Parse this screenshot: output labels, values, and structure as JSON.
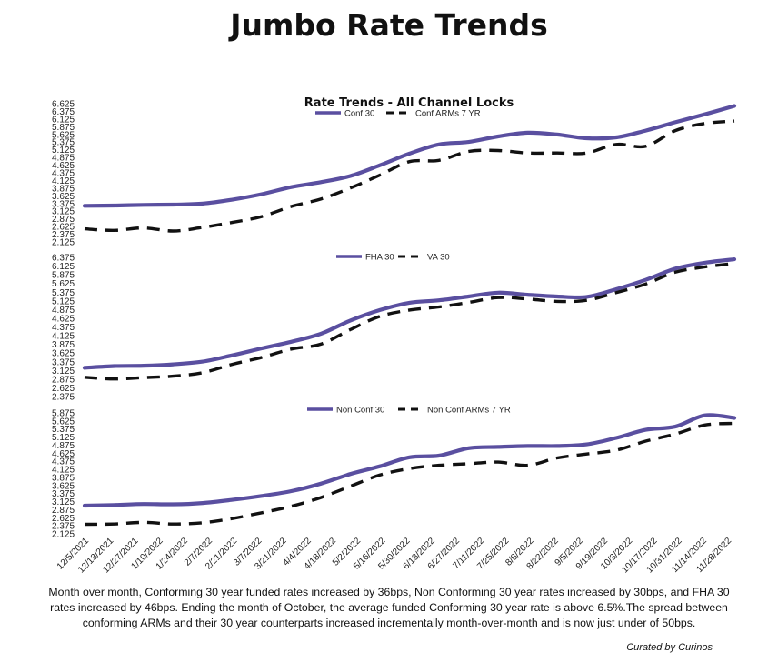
{
  "page": {
    "title": "Jumbo Rate Trends",
    "summary": "Month over month, Conforming 30 year funded rates increased by 36bps, Non Conforming 30 year rates increased by 30bps, and FHA 30 rates increased by 46bps. Ending the month of October, the average funded Conforming 30 year rate is above 6.5%.The spread between conforming ARMs and their 30 year counterparts increased incrementally month-over-month and is now just under of 50bps.",
    "credit": "Curated by Curinos"
  },
  "colors": {
    "primary_series": "#5a4fa0",
    "secondary_series": "#111111"
  },
  "chart_data": [
    {
      "type": "line",
      "title": "Rate Trends - All Channel Locks",
      "x_tick_labels": [
        "12/5/2021",
        "12/13/2021",
        "12/27/2021",
        "1/10/2022",
        "1/24/2022",
        "2/7/2022",
        "2/21/2022",
        "3/7/2022",
        "3/21/2022",
        "4/4/2022",
        "4/18/2022",
        "5/2/2022",
        "5/16/2022",
        "5/30/2022",
        "6/13/2022",
        "6/27/2022",
        "7/11/2022",
        "7/25/2022",
        "8/8/2022",
        "8/22/2022",
        "9/5/2022",
        "9/19/2022",
        "10/3/2022",
        "10/17/2022",
        "10/31/2022",
        "11/14/2022",
        "11/28/2022"
      ],
      "ylim": [
        2.125,
        6.625
      ],
      "y_ticks": [
        "6.625",
        "6.375",
        "6.125",
        "5.875",
        "5.625",
        "5.375",
        "5.125",
        "4.875",
        "4.625",
        "4.375",
        "4.125",
        "3.875",
        "3.625",
        "3.375",
        "3.125",
        "2.875",
        "2.625",
        "2.375",
        "2.125"
      ],
      "series": [
        {
          "name": "Conf 30",
          "style": "solid",
          "values": [
            3.3,
            3.31,
            3.33,
            3.34,
            3.37,
            3.5,
            3.68,
            3.91,
            4.07,
            4.27,
            4.62,
            5.0,
            5.3,
            5.38,
            5.56,
            5.68,
            5.62,
            5.5,
            5.53,
            5.75,
            6.02,
            6.28,
            6.55
          ]
        },
        {
          "name": "Conf ARMs 7 YR",
          "style": "dashed",
          "values": [
            2.55,
            2.5,
            2.58,
            2.48,
            2.6,
            2.76,
            2.95,
            3.28,
            3.52,
            3.88,
            4.3,
            4.74,
            4.78,
            5.07,
            5.1,
            5.02,
            5.02,
            5.02,
            5.3,
            5.24,
            5.75,
            5.98,
            6.06
          ]
        }
      ]
    },
    {
      "type": "line",
      "title": "",
      "ylim": [
        2.375,
        6.375
      ],
      "y_ticks": [
        "6.375",
        "6.125",
        "5.875",
        "5.625",
        "5.375",
        "5.125",
        "4.875",
        "4.625",
        "4.375",
        "4.125",
        "3.875",
        "3.625",
        "3.375",
        "3.125",
        "2.875",
        "2.625",
        "2.375"
      ],
      "series": [
        {
          "name": "FHA 30",
          "style": "solid",
          "values": [
            3.2,
            3.25,
            3.26,
            3.3,
            3.38,
            3.56,
            3.76,
            3.95,
            4.18,
            4.56,
            4.86,
            5.07,
            5.14,
            5.25,
            5.36,
            5.3,
            5.25,
            5.24,
            5.46,
            5.73,
            6.05,
            6.22,
            6.32
          ]
        },
        {
          "name": "VA 30",
          "style": "dashed",
          "values": [
            2.93,
            2.88,
            2.92,
            2.96,
            3.06,
            3.3,
            3.5,
            3.74,
            3.88,
            4.3,
            4.68,
            4.86,
            4.95,
            5.08,
            5.22,
            5.18,
            5.11,
            5.14,
            5.36,
            5.61,
            5.95,
            6.1,
            6.2
          ]
        }
      ]
    },
    {
      "type": "line",
      "title": "",
      "ylim": [
        2.125,
        5.875
      ],
      "y_ticks": [
        "5.875",
        "5.625",
        "5.375",
        "5.125",
        "4.875",
        "4.625",
        "4.375",
        "4.125",
        "3.875",
        "3.625",
        "3.375",
        "3.125",
        "2.875",
        "2.625",
        "2.375",
        "2.125"
      ],
      "series": [
        {
          "name": "Non Conf 30",
          "style": "solid",
          "values": [
            3.0,
            3.02,
            3.05,
            3.04,
            3.08,
            3.18,
            3.3,
            3.45,
            3.68,
            3.98,
            4.22,
            4.5,
            4.55,
            4.78,
            4.82,
            4.85,
            4.85,
            4.9,
            5.1,
            5.35,
            5.45,
            5.8,
            5.72
          ]
        },
        {
          "name": "Non Conf ARMs 7 YR",
          "style": "dashed",
          "values": [
            2.42,
            2.43,
            2.48,
            2.43,
            2.47,
            2.6,
            2.78,
            2.98,
            3.25,
            3.6,
            3.95,
            4.15,
            4.25,
            4.3,
            4.35,
            4.25,
            4.48,
            4.6,
            4.72,
            5.0,
            5.22,
            5.5,
            5.55
          ]
        }
      ]
    }
  ]
}
